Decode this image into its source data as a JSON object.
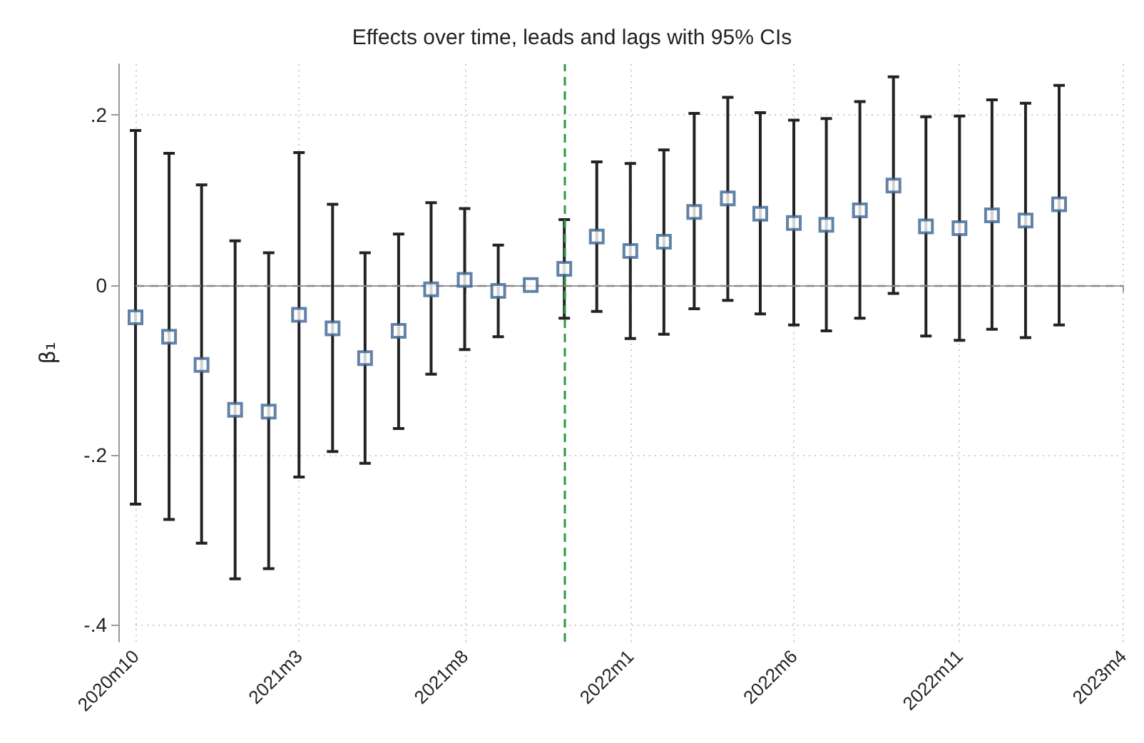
{
  "chart_data": {
    "type": "scatter",
    "title": "Effects over time, leads and lags with 95% CIs",
    "ylabel": "β₁",
    "x": [
      "2020-10",
      "2020-11",
      "2020-12",
      "2021-01",
      "2021-02",
      "2021-03",
      "2021-04",
      "2021-05",
      "2021-06",
      "2021-07",
      "2021-08",
      "2021-09",
      "2021-10",
      "2021-11",
      "2021-12",
      "2022-01",
      "2022-02",
      "2022-03",
      "2022-04",
      "2022-05",
      "2022-06",
      "2022-07",
      "2022-08",
      "2022-09",
      "2022-10",
      "2022-11",
      "2022-12",
      "2023-01",
      "2023-02"
    ],
    "series": [
      {
        "color": "#3b6391",
        "values": [
          -0.038,
          -0.061,
          -0.094,
          -0.147,
          -0.149,
          -0.035,
          -0.051,
          -0.086,
          -0.054,
          -0.005,
          0.006,
          -0.007,
          0,
          0.019,
          0.057,
          0.04,
          0.051,
          0.086,
          0.102,
          0.084,
          0.073,
          0.071,
          0.088,
          0.117,
          0.069,
          0.067,
          0.082,
          0.076,
          0.095
        ],
        "errors": [
          [
            -0.258,
            0.182
          ],
          [
            -0.276,
            0.155
          ],
          [
            -0.304,
            0.118
          ],
          [
            -0.346,
            0.052
          ],
          [
            -0.334,
            0.038
          ],
          [
            -0.226,
            0.156
          ],
          [
            -0.196,
            0.095
          ],
          [
            -0.21,
            0.038
          ],
          [
            -0.169,
            0.06
          ],
          [
            -0.105,
            0.097
          ],
          [
            -0.076,
            0.09
          ],
          [
            -0.061,
            0.047
          ],
          null,
          [
            -0.039,
            0.077
          ],
          [
            -0.031,
            0.145
          ],
          [
            -0.063,
            0.143
          ],
          [
            -0.058,
            0.159
          ],
          [
            -0.028,
            0.202
          ],
          [
            -0.018,
            0.221
          ],
          [
            -0.034,
            0.203
          ],
          [
            -0.047,
            0.194
          ],
          [
            -0.054,
            0.196
          ],
          [
            -0.039,
            0.216
          ],
          [
            -0.01,
            0.245
          ],
          [
            -0.06,
            0.198
          ],
          [
            -0.065,
            0.199
          ],
          [
            -0.052,
            0.218
          ],
          [
            -0.062,
            0.214
          ],
          [
            -0.047,
            0.235
          ]
        ]
      }
    ],
    "xlim": [
      "2020-10",
      "2023-04"
    ],
    "xticks": [
      {
        "value": "2020-10",
        "label": "2020m10"
      },
      {
        "value": "2021-03",
        "label": "2021m3"
      },
      {
        "value": "2021-08",
        "label": "2021m8"
      },
      {
        "value": "2022-01",
        "label": "2022m1"
      },
      {
        "value": "2022-06",
        "label": "2022m6"
      },
      {
        "value": "2022-11",
        "label": "2022m11"
      },
      {
        "value": "2023-04",
        "label": "2023m4"
      }
    ],
    "ylim": [
      -0.42,
      0.26
    ],
    "yticks": [
      {
        "value": -0.4,
        "label": "-.4"
      },
      {
        "value": -0.2,
        "label": "-.2"
      },
      {
        "value": 0,
        "label": "0"
      },
      {
        "value": 0.2,
        "label": ".2"
      }
    ],
    "ref_lines": [
      {
        "axis": "y",
        "value": 0,
        "color": "#888888",
        "line_style": "dashed"
      },
      {
        "axis": "x",
        "value": "2021-11",
        "color": "#2a9a3a",
        "line_style": "dashed"
      }
    ],
    "grid": true,
    "marker": "square"
  }
}
